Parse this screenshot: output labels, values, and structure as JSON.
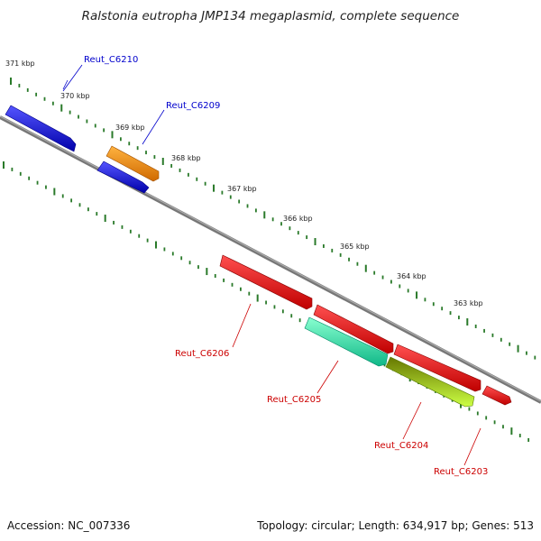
{
  "title": "Ralstonia eutropha JMP134 megaplasmid, complete sequence",
  "footer": {
    "accession": "Accession: NC_007336",
    "summary": "Topology: circular; Length: 634,917 bp; Genes: 513"
  },
  "ticks": [
    {
      "label": "371 kbp",
      "kbp": 371
    },
    {
      "label": "370 kbp",
      "kbp": 370
    },
    {
      "label": "369 kbp",
      "kbp": 369
    },
    {
      "label": "368 kbp",
      "kbp": 368
    },
    {
      "label": "367 kbp",
      "kbp": 367
    },
    {
      "label": "366 kbp",
      "kbp": 366
    },
    {
      "label": "365 kbp",
      "kbp": 365
    },
    {
      "label": "364 kbp",
      "kbp": 364
    },
    {
      "label": "363 kbp",
      "kbp": 363
    }
  ],
  "genes": [
    {
      "label": "Reut_C6210",
      "label_color": "#0000cc",
      "color": "#1010ee"
    },
    {
      "label": "Reut_C6209",
      "label_color": "#0000cc",
      "color": "#1010ee"
    },
    {
      "label": "",
      "color": "#ff9a10"
    },
    {
      "label": "Reut_C6206",
      "label_color": "#cc0000",
      "color": "#ee1010"
    },
    {
      "label": "",
      "color": "#ee1010"
    },
    {
      "label": "",
      "color": "#ee1010"
    },
    {
      "label": "",
      "color": "#ee1010"
    },
    {
      "label": "Reut_C6205",
      "label_color": "#cc0000",
      "color": "#33eeaa"
    },
    {
      "label": "Reut_C6204",
      "label_color": "#cc0000",
      "color": "#99dd22"
    },
    {
      "label": "Reut_C6203",
      "label_color": "#cc0000",
      "color": "#ee1010"
    }
  ]
}
